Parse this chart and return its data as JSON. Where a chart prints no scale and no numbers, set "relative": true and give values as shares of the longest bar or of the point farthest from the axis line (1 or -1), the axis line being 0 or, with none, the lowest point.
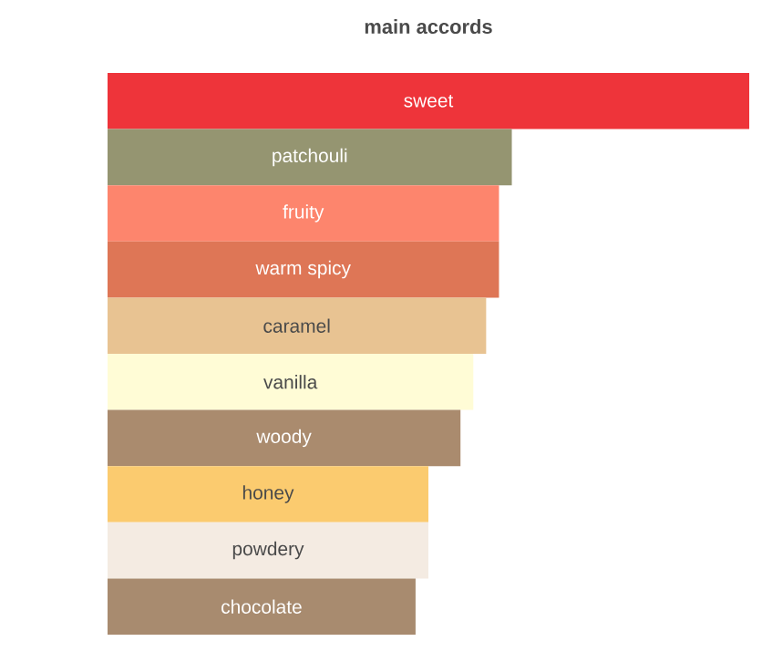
{
  "chart_data": {
    "type": "bar",
    "orientation": "horizontal",
    "relative": true,
    "title": "main accords",
    "categories": [
      "sweet",
      "patchouli",
      "fruity",
      "warm spicy",
      "caramel",
      "vanilla",
      "woody",
      "honey",
      "powdery",
      "chocolate"
    ],
    "values": [
      1,
      0.63,
      0.61,
      0.61,
      0.59,
      0.57,
      0.55,
      0.5,
      0.5,
      0.48
    ],
    "colors": [
      "#ee343a",
      "#959571",
      "#fd856d",
      "#de7656",
      "#e8c392",
      "#fffcd6",
      "#aa8b6e",
      "#fbcb6f",
      "#f4ebe2",
      "#a88b6f"
    ]
  }
}
